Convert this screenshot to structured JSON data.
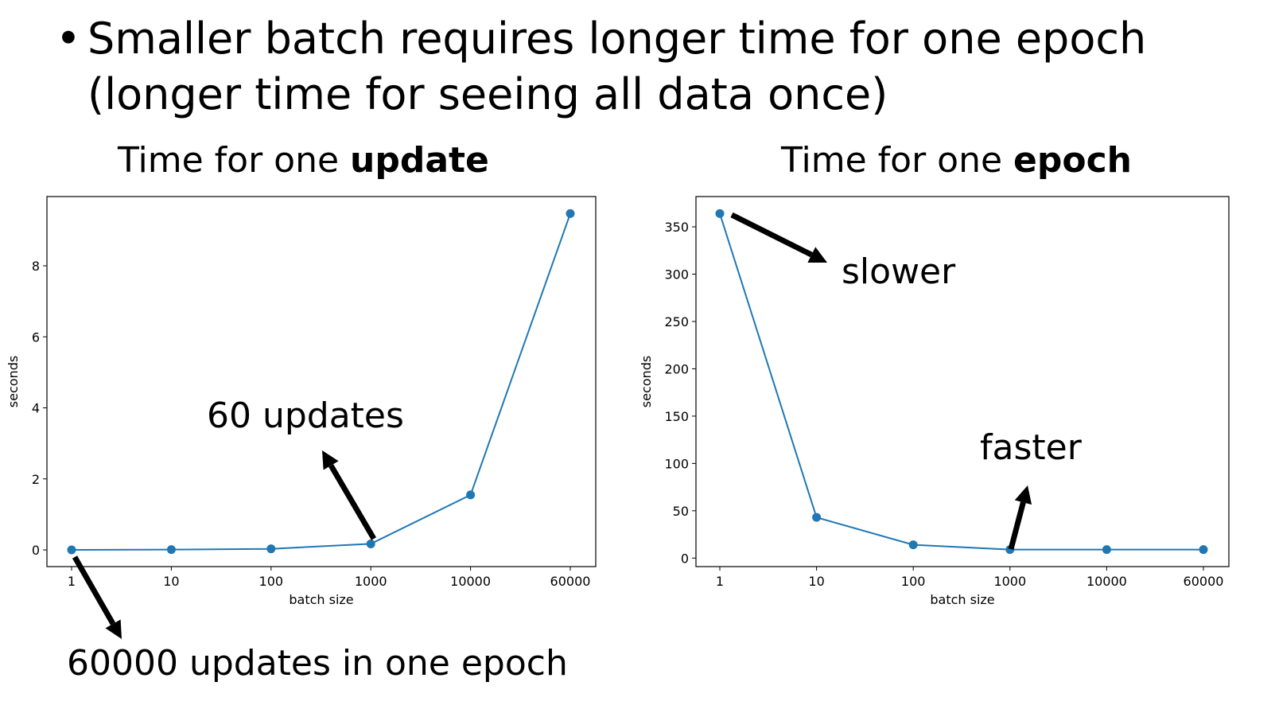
{
  "bullet": {
    "symbol": "•",
    "line1": "Smaller batch requires longer time for one epoch",
    "line2": "(longer time for seeing all data once)"
  },
  "annotations": {
    "left_sixty": "60 updates",
    "left_sixty_thousand": "60000 updates in one epoch",
    "right_slower": "slower",
    "right_faster": "faster"
  },
  "colors": {
    "line": "#1f77b4",
    "arrow": "#000000"
  },
  "chart_data": [
    {
      "type": "line",
      "title_prefix": "Time for one ",
      "title_bold": "update",
      "xlabel": "batch size",
      "ylabel": "seconds",
      "categories": [
        "1",
        "10",
        "100",
        "1000",
        "10000",
        "60000"
      ],
      "values": [
        0.0,
        0.01,
        0.03,
        0.17,
        1.55,
        9.47
      ],
      "yticks": [
        0,
        2,
        4,
        6,
        8
      ],
      "ylim": [
        -0.47,
        9.95
      ],
      "grid": false
    },
    {
      "type": "line",
      "title_prefix": "Time for one ",
      "title_bold": "epoch",
      "xlabel": "batch size",
      "ylabel": "seconds",
      "categories": [
        "1",
        "10",
        "100",
        "1000",
        "10000",
        "60000"
      ],
      "values": [
        364,
        43,
        14,
        9,
        9,
        9
      ],
      "yticks": [
        0,
        50,
        100,
        150,
        200,
        250,
        300,
        350
      ],
      "ylim": [
        -9,
        382
      ],
      "grid": false
    }
  ]
}
